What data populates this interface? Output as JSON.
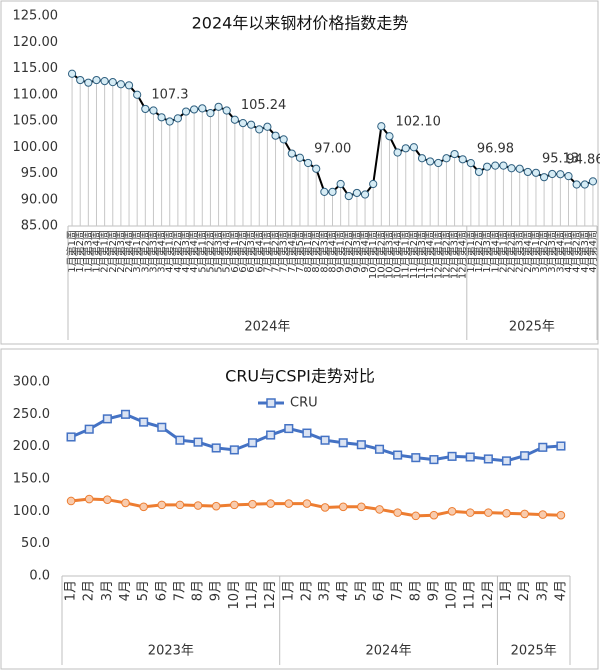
{
  "chart_data": [
    {
      "type": "line",
      "title": "2024年以来钢材价格指数走势",
      "categories": [
        "1月第1周",
        "1月第2周",
        "1月第3周",
        "1月第4周",
        "2月第1周",
        "2月第2周",
        "2月第3周",
        "2月第4周",
        "3月第1周",
        "3月第2周",
        "3月第3周",
        "3月第4周",
        "4月第1周",
        "4月第2周",
        "4月第3周",
        "4月第4周",
        "5月第1周",
        "5月第2周",
        "5月第3周",
        "5月第4周",
        "6月第1周",
        "6月第2周",
        "6月第3周",
        "6月第4周",
        "7月第1周",
        "7月第2周",
        "7月第3周",
        "7月第4周",
        "7月第5周",
        "8月第1周",
        "8月第2周",
        "8月第3周",
        "8月第4周",
        "9月第1周",
        "9月第2周",
        "9月第3周",
        "9月第4周",
        "10月第1周",
        "10月第2周",
        "10月第3周",
        "10月第4周",
        "11月第1周",
        "11月第2周",
        "11月第3周",
        "11月第4周",
        "12月第1周",
        "12月第2周",
        "12月第3周",
        "12月第4周",
        "1月第1周",
        "1月第2周",
        "1月第3周",
        "1月第4周",
        "2月第1周",
        "2月第2周",
        "2月第3周",
        "2月第4周",
        "3月第1周",
        "3月第2周",
        "3月第3周",
        "3月第4周",
        "4月第1周",
        "4月第2周",
        "4月第3周",
        "4月第4周"
      ],
      "groups": [
        {
          "label": "2024年",
          "count": 49
        },
        {
          "label": "2025年",
          "count": 16
        }
      ],
      "series": [
        {
          "color": "#000000",
          "marker": "circle",
          "marker_fill": "#d6ecf5",
          "marker_stroke": "#2f5f7f",
          "values": [
            114.0,
            112.8,
            112.3,
            112.8,
            112.6,
            112.4,
            112.0,
            111.8,
            110.0,
            107.3,
            107.0,
            105.7,
            104.9,
            105.5,
            106.8,
            107.2,
            107.4,
            106.5,
            107.7,
            107.0,
            105.24,
            104.6,
            104.3,
            103.4,
            103.9,
            102.2,
            101.5,
            98.8,
            98.0,
            97.0,
            95.9,
            91.5,
            91.5,
            93.0,
            90.7,
            91.3,
            91.0,
            93.0,
            104.0,
            102.1,
            99.0,
            99.8,
            100.0,
            97.9,
            97.3,
            97.0,
            97.9,
            98.7,
            97.7,
            96.98,
            95.3,
            96.3,
            96.5,
            96.5,
            96.0,
            95.9,
            95.3,
            95.13,
            94.3,
            94.9,
            94.86,
            94.5,
            92.9,
            92.9,
            93.5
          ],
          "value_labels": [
            null,
            null,
            null,
            null,
            null,
            null,
            null,
            null,
            null,
            "107.3",
            null,
            null,
            null,
            null,
            null,
            null,
            null,
            null,
            null,
            null,
            "105.24",
            null,
            null,
            null,
            null,
            null,
            null,
            null,
            null,
            "97.00",
            null,
            null,
            null,
            null,
            null,
            null,
            null,
            null,
            null,
            "102.10",
            null,
            null,
            null,
            null,
            null,
            null,
            null,
            null,
            null,
            "96.98",
            null,
            null,
            null,
            null,
            null,
            null,
            null,
            "95.13",
            null,
            null,
            "94.86",
            null,
            null,
            null,
            null
          ]
        }
      ],
      "ylim": [
        85,
        125
      ],
      "yticks": [
        {
          "value": 85,
          "label": "85.00"
        },
        {
          "value": 90,
          "label": "90.00"
        },
        {
          "value": 95,
          "label": "95.00"
        },
        {
          "value": 100,
          "label": "100.00"
        },
        {
          "value": 105,
          "label": "105.00"
        },
        {
          "value": 110,
          "label": "110.00"
        },
        {
          "value": 115,
          "label": "115.00"
        },
        {
          "value": 120,
          "label": "120.00"
        },
        {
          "value": 125,
          "label": "125.00"
        }
      ],
      "drop_lines": true
    },
    {
      "type": "line",
      "title": "CRU与CSPI走势对比",
      "categories": [
        "1月",
        "2月",
        "3月",
        "4月",
        "5月",
        "6月",
        "7月",
        "8月",
        "9月",
        "10月",
        "11月",
        "12月",
        "1月",
        "2月",
        "3月",
        "4月",
        "5月",
        "6月",
        "7月",
        "8月",
        "9月",
        "10月",
        "11月",
        "12月",
        "1月",
        "2月",
        "3月",
        "4月"
      ],
      "groups": [
        {
          "label": "2023年",
          "count": 12
        },
        {
          "label": "2024年",
          "count": 12
        },
        {
          "label": "2025年",
          "count": 4
        }
      ],
      "series": [
        {
          "name": "CRU",
          "color": "#4472c4",
          "marker": "square",
          "marker_fill": "#dae3f3",
          "marker_stroke": "#4472c4",
          "values": [
            215,
            227,
            243,
            250,
            238,
            230,
            210,
            207,
            198,
            195,
            206,
            218,
            228,
            221,
            210,
            206,
            203,
            196,
            187,
            183,
            180,
            185,
            184,
            181,
            178,
            186,
            199,
            201
          ]
        },
        {
          "color": "#ed7d31",
          "marker": "circle",
          "marker_fill": "#f8cbad",
          "marker_stroke": "#ed7d31",
          "values": [
            116,
            119,
            118,
            113,
            107,
            110,
            110,
            109,
            108,
            110,
            111,
            112,
            112,
            112,
            106,
            107,
            107,
            103,
            98,
            93,
            94,
            100,
            98,
            98,
            97,
            96,
            95,
            94
          ]
        }
      ],
      "ylim": [
        0,
        300
      ],
      "yticks": [
        {
          "value": 0,
          "label": "0.0"
        },
        {
          "value": 50,
          "label": "50.0"
        },
        {
          "value": 100,
          "label": "100.0"
        },
        {
          "value": 150,
          "label": "150.0"
        },
        {
          "value": 200,
          "label": "200.0"
        },
        {
          "value": 250,
          "label": "250.0"
        },
        {
          "value": 300,
          "label": "300.0"
        }
      ],
      "legend": "top"
    }
  ]
}
